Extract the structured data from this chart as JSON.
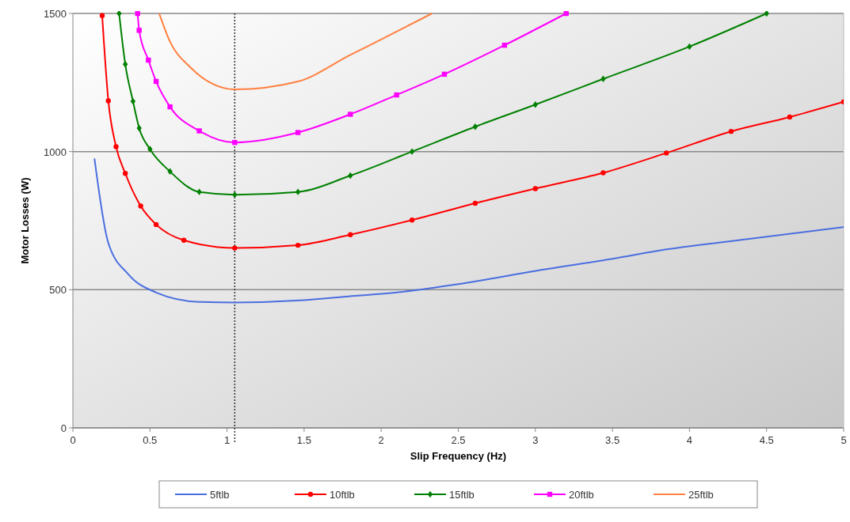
{
  "chart_data": {
    "type": "line",
    "xlabel": "Slip Frequency (Hz)",
    "ylabel": "Motor Losses (W)",
    "xlim": [
      0,
      5
    ],
    "xticks": [
      0,
      0.5,
      1,
      1.5,
      2,
      2.5,
      3,
      3.5,
      4,
      4.5,
      5
    ],
    "ylim": [
      0,
      1500
    ],
    "yticks": [
      0,
      500,
      1000,
      1500
    ],
    "grid": "y",
    "legend": "bottom",
    "ref_lines": [
      {
        "axis": "x",
        "value": 1.05,
        "line_style": "dotted",
        "color": "#333333"
      }
    ],
    "series": [
      {
        "name": "5ftlb",
        "color": "#4a6ee0",
        "marker": "none",
        "x": [
          0.14,
          0.23,
          0.36,
          0.54,
          0.82,
          1.05,
          1.5,
          1.79,
          2.1,
          2.5,
          3.03,
          3.5,
          3.85,
          4.4,
          5
        ],
        "values": [
          975,
          669,
          556,
          490,
          456,
          454,
          462,
          476,
          490,
          520,
          571,
          612,
          646,
          685,
          727
        ]
      },
      {
        "name": "10ftlb",
        "color": "#ff0000",
        "marker": "circle",
        "x": [
          0.19,
          0.23,
          0.28,
          0.34,
          0.44,
          0.54,
          0.72,
          1.05,
          1.46,
          1.8,
          2.2,
          2.61,
          3.0,
          3.44,
          3.85,
          4.27,
          4.65,
          5
        ],
        "values": [
          1492,
          1184,
          1018,
          921,
          803,
          736,
          679,
          651,
          661,
          699,
          752,
          813,
          866,
          923,
          995,
          1073,
          1125,
          1180
        ]
      },
      {
        "name": "15ftlb",
        "color": "#008000",
        "marker": "diamond",
        "x": [
          0.3,
          0.34,
          0.39,
          0.43,
          0.5,
          0.63,
          0.82,
          1.05,
          1.46,
          1.8,
          2.2,
          2.61,
          3.0,
          3.44,
          4.0,
          4.5
        ],
        "values": [
          1500,
          1316,
          1182,
          1085,
          1009,
          928,
          854,
          844,
          854,
          913,
          1000,
          1090,
          1170,
          1263,
          1380,
          1500
        ]
      },
      {
        "name": "20ftlb",
        "color": "#ff00ff",
        "marker": "square",
        "x": [
          0.42,
          0.43,
          0.49,
          0.54,
          0.63,
          0.82,
          1.05,
          1.46,
          1.8,
          2.1,
          2.41,
          2.8,
          3.2
        ],
        "values": [
          1500,
          1439,
          1331,
          1254,
          1162,
          1075,
          1033,
          1069,
          1135,
          1205,
          1280,
          1385,
          1500
        ]
      },
      {
        "name": "25ftlb",
        "color": "#ff8040",
        "marker": "none",
        "x": [
          0.56,
          0.63,
          0.76,
          0.91,
          1.05,
          1.46,
          1.8,
          2.05,
          2.33
        ],
        "values": [
          1500,
          1398,
          1306,
          1244,
          1225,
          1254,
          1350,
          1420,
          1500
        ]
      }
    ]
  }
}
